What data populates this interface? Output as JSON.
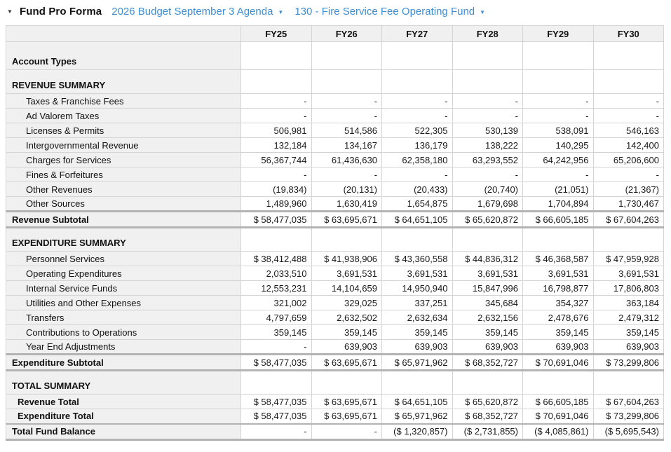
{
  "header": {
    "title": "Fund Pro Forma",
    "budget_dropdown": "2026 Budget September 3 Agenda",
    "fund_dropdown": "130 - Fire Service Fee Operating Fund",
    "link_color": "#3f8ed2"
  },
  "table": {
    "columns": [
      "FY25",
      "FY26",
      "FY27",
      "FY28",
      "FY29",
      "FY30"
    ],
    "rows": [
      {
        "label": "Account Types",
        "type": "section-first",
        "values": [
          "",
          "",
          "",
          "",
          "",
          ""
        ]
      },
      {
        "label": "REVENUE SUMMARY",
        "type": "section",
        "values": [
          "",
          "",
          "",
          "",
          "",
          ""
        ]
      },
      {
        "label": "Taxes & Franchise Fees",
        "type": "detail",
        "values": [
          "-",
          "-",
          "-",
          "-",
          "-",
          "-"
        ]
      },
      {
        "label": "Ad Valorem Taxes",
        "type": "detail",
        "values": [
          "-",
          "-",
          "-",
          "-",
          "-",
          "-"
        ]
      },
      {
        "label": "Licenses & Permits",
        "type": "detail",
        "values": [
          "506,981",
          "514,586",
          "522,305",
          "530,139",
          "538,091",
          "546,163"
        ]
      },
      {
        "label": "Intergovernmental Revenue",
        "type": "detail",
        "values": [
          "132,184",
          "134,167",
          "136,179",
          "138,222",
          "140,295",
          "142,400"
        ]
      },
      {
        "label": "Charges for Services",
        "type": "detail",
        "values": [
          "56,367,744",
          "61,436,630",
          "62,358,180",
          "63,293,552",
          "64,242,956",
          "65,206,600"
        ]
      },
      {
        "label": "Fines & Forfeitures",
        "type": "detail",
        "values": [
          "-",
          "-",
          "-",
          "-",
          "-",
          "-"
        ]
      },
      {
        "label": "Other Revenues",
        "type": "detail",
        "values": [
          "(19,834)",
          "(20,131)",
          "(20,433)",
          "(20,740)",
          "(21,051)",
          "(21,367)"
        ]
      },
      {
        "label": "Other Sources",
        "type": "detail",
        "values": [
          "1,489,960",
          "1,630,419",
          "1,654,875",
          "1,679,698",
          "1,704,894",
          "1,730,467"
        ]
      },
      {
        "label": "Revenue Subtotal",
        "type": "subtotal",
        "values": [
          "$ 58,477,035",
          "$ 63,695,671",
          "$ 64,651,105",
          "$ 65,620,872",
          "$ 66,605,185",
          "$ 67,604,263"
        ]
      },
      {
        "label": "EXPENDITURE SUMMARY",
        "type": "section",
        "values": [
          "",
          "",
          "",
          "",
          "",
          ""
        ]
      },
      {
        "label": "Personnel Services",
        "type": "detail",
        "values": [
          "$ 38,412,488",
          "$ 41,938,906",
          "$ 43,360,558",
          "$ 44,836,312",
          "$ 46,368,587",
          "$ 47,959,928"
        ]
      },
      {
        "label": "Operating Expenditures",
        "type": "detail",
        "values": [
          "2,033,510",
          "3,691,531",
          "3,691,531",
          "3,691,531",
          "3,691,531",
          "3,691,531"
        ]
      },
      {
        "label": "Internal Service Funds",
        "type": "detail",
        "values": [
          "12,553,231",
          "14,104,659",
          "14,950,940",
          "15,847,996",
          "16,798,877",
          "17,806,803"
        ]
      },
      {
        "label": "Utilities and Other Expenses",
        "type": "detail",
        "values": [
          "321,002",
          "329,025",
          "337,251",
          "345,684",
          "354,327",
          "363,184"
        ]
      },
      {
        "label": "Transfers",
        "type": "detail",
        "values": [
          "4,797,659",
          "2,632,502",
          "2,632,634",
          "2,632,156",
          "2,478,676",
          "2,479,312"
        ]
      },
      {
        "label": "Contributions to Operations",
        "type": "detail",
        "values": [
          "359,145",
          "359,145",
          "359,145",
          "359,145",
          "359,145",
          "359,145"
        ]
      },
      {
        "label": "Year End Adjustments",
        "type": "detail",
        "values": [
          "-",
          "639,903",
          "639,903",
          "639,903",
          "639,903",
          "639,903"
        ]
      },
      {
        "label": "Expenditure Subtotal",
        "type": "subtotal",
        "values": [
          "$ 58,477,035",
          "$ 63,695,671",
          "$ 65,971,962",
          "$ 68,352,727",
          "$ 70,691,046",
          "$ 73,299,806"
        ]
      },
      {
        "label": "TOTAL SUMMARY",
        "type": "section",
        "values": [
          "",
          "",
          "",
          "",
          "",
          ""
        ]
      },
      {
        "label": "Revenue Total",
        "type": "total",
        "values": [
          "$ 58,477,035",
          "$ 63,695,671",
          "$ 64,651,105",
          "$ 65,620,872",
          "$ 66,605,185",
          "$ 67,604,263"
        ]
      },
      {
        "label": "Expenditure Total",
        "type": "total",
        "values": [
          "$ 58,477,035",
          "$ 63,695,671",
          "$ 65,971,962",
          "$ 68,352,727",
          "$ 70,691,046",
          "$ 73,299,806"
        ]
      },
      {
        "label": "Total Fund Balance",
        "type": "balance",
        "values": [
          "-",
          "-",
          "($ 1,320,857)",
          "($ 2,731,855)",
          "($ 4,085,861)",
          "($ 5,695,543)"
        ]
      }
    ]
  }
}
